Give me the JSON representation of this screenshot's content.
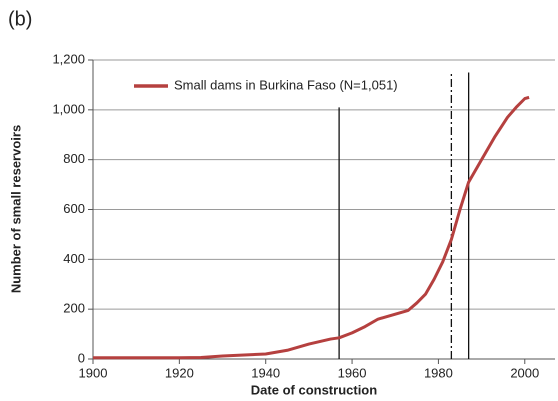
{
  "chart_data": {
    "type": "line",
    "panel_label": "(b)",
    "x_label": "Date of construction",
    "y_label": "Number of small reservoirs",
    "x": [
      1900,
      1910,
      1920,
      1925,
      1930,
      1935,
      1940,
      1945,
      1950,
      1955,
      1957,
      1960,
      1963,
      1966,
      1970,
      1973,
      1975,
      1977,
      1979,
      1981,
      1983,
      1985,
      1987,
      1990,
      1993,
      1996,
      1998,
      2000,
      2001
    ],
    "series": [
      {
        "name": "Small dams in Burkina Faso (N=1,051)",
        "color": "#b5403f",
        "values": [
          5,
          5,
          5,
          6,
          12,
          16,
          20,
          35,
          60,
          80,
          85,
          105,
          130,
          160,
          180,
          195,
          225,
          260,
          320,
          390,
          480,
          600,
          710,
          800,
          890,
          970,
          1010,
          1045,
          1050
        ]
      }
    ],
    "xlim": [
      1900,
      2007
    ],
    "xticks": [
      1900,
      1920,
      1940,
      1960,
      1980,
      2000
    ],
    "ylim": [
      0,
      1200
    ],
    "yticks": [
      0,
      200,
      400,
      600,
      800,
      {
        "value": 1000,
        "label": "1,000"
      },
      {
        "value": 1200,
        "label": "1,200"
      }
    ],
    "grid": true,
    "legend": "top-left",
    "reference_lines": [
      {
        "x": 1957,
        "y_end": 1010,
        "style": "solid"
      },
      {
        "x": 1983,
        "y_end": 1150,
        "style": "dash-dot"
      },
      {
        "x": 1987,
        "y_end": 1150,
        "style": "solid"
      }
    ]
  }
}
